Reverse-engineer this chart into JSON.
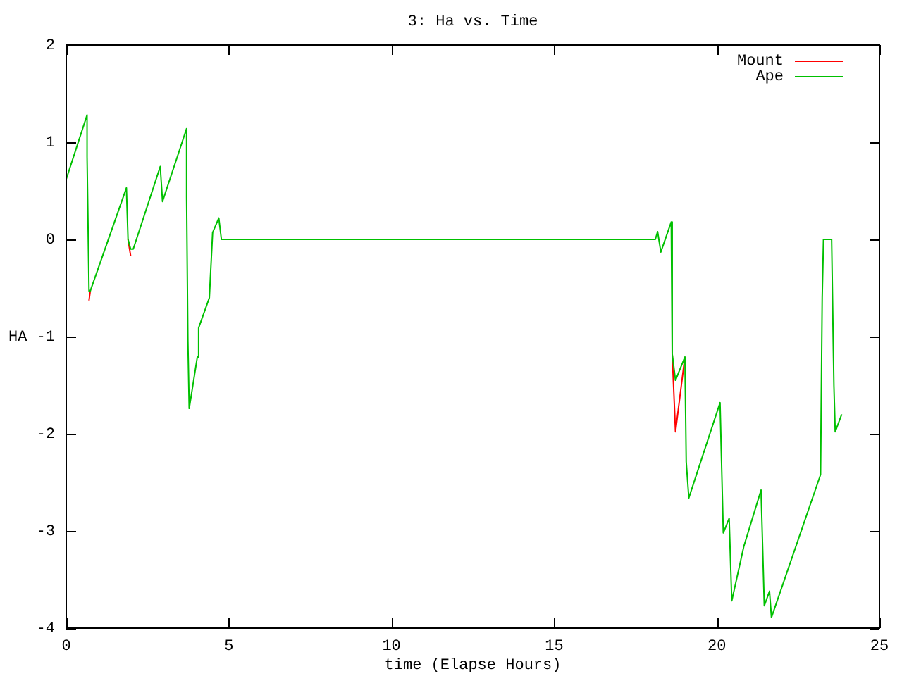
{
  "chart_data": {
    "type": "line",
    "title": "3: Ha vs. Time",
    "xlabel": "time (Elapse Hours)",
    "ylabel": "HA",
    "xlim": [
      0,
      25
    ],
    "xticks": [
      0,
      5,
      10,
      15,
      20,
      25
    ],
    "ylim": [
      -4,
      2
    ],
    "yticks": [
      -4,
      -3,
      -2,
      -1,
      0,
      1,
      2
    ],
    "grid": false,
    "legend": "top right",
    "marker": "none",
    "line_style": "solid",
    "series": [
      {
        "name": "Mount",
        "color": "#ff0000",
        "x": [
          0.7,
          0.74,
          null,
          1.9,
          1.98,
          null,
          18.63,
          18.73,
          19.02
        ],
        "values": [
          -0.63,
          -0.53,
          null,
          0,
          -0.17,
          null,
          -1.18,
          -1.98,
          -1.21
        ]
      },
      {
        "name": "Ape",
        "color": "#00c000",
        "x": [
          0,
          0.64,
          0.64,
          0.7,
          0.74,
          1.85,
          1.9,
          1.98,
          2.06,
          2.89,
          2.96,
          3.7,
          3.7,
          3.74,
          3.78,
          4.03,
          4.07,
          4.4,
          4.5,
          4.69,
          4.77,
          18.11,
          18.18,
          18.28,
          18.6,
          18.63,
          18.73,
          19.02,
          19.06,
          19.14,
          20.1,
          20.2,
          20.38,
          20.46,
          20.83,
          21.36,
          21.46,
          21.62,
          21.68,
          23.19,
          23.24,
          23.28,
          23.53,
          23.6,
          23.64,
          23.84
        ],
        "values": [
          0.62,
          1.28,
          0.85,
          -0.53,
          -0.53,
          0.53,
          0,
          -0.1,
          -0.1,
          0.75,
          0.39,
          1.14,
          0.43,
          -1.04,
          -1.74,
          -1.21,
          -0.91,
          -0.6,
          0.07,
          0.22,
          0,
          0,
          0.08,
          -0.13,
          0.18,
          -1.18,
          -1.45,
          -1.21,
          -2.29,
          -2.66,
          -1.68,
          -3.02,
          -2.87,
          -3.72,
          -3.16,
          -2.58,
          -3.77,
          -3.62,
          -3.89,
          -2.42,
          -0.6,
          0,
          0,
          -1.5,
          -1.98,
          -1.8
        ]
      }
    ]
  }
}
